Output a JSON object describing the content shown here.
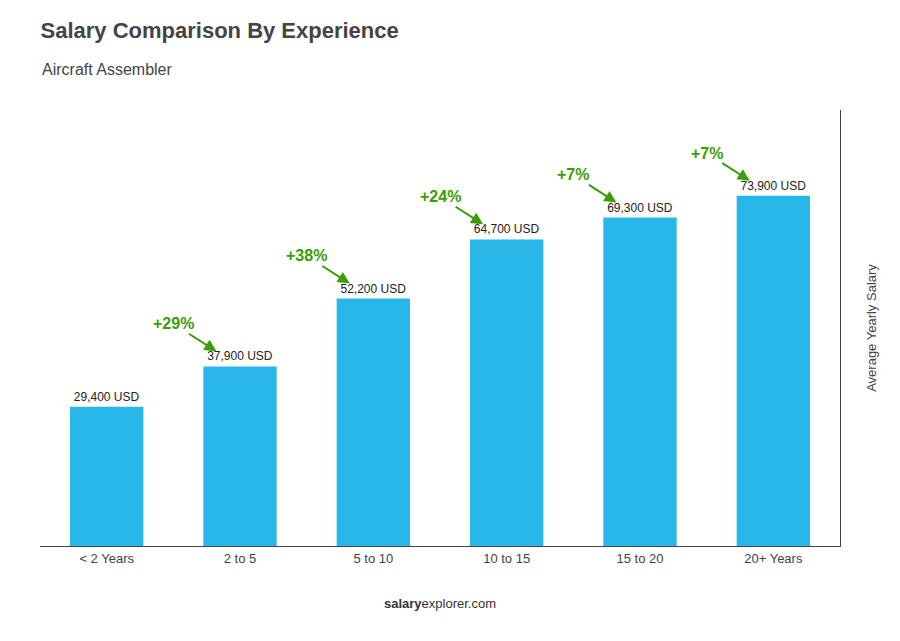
{
  "chart_data": {
    "type": "bar",
    "title": "Salary Comparison By Experience",
    "subtitle": "Aircraft Assembler",
    "categories": [
      "< 2 Years",
      "2 to 5",
      "5 to 10",
      "10 to 15",
      "15 to 20",
      "20+ Years"
    ],
    "values": [
      29400,
      37900,
      52200,
      64700,
      69300,
      73900
    ],
    "value_labels": [
      "29,400 USD",
      "37,900 USD",
      "52,200 USD",
      "64,700 USD",
      "69,300 USD",
      "73,900 USD"
    ],
    "data_labels": true,
    "color": "#29B6E8",
    "ylabel": "Average Yearly Salary",
    "ylim": [
      0,
      92000
    ],
    "grid": false,
    "tick_labels": "x",
    "annotations": [
      "+29%",
      "+38%",
      "+24%",
      "+7%",
      "+7%"
    ],
    "footer": [
      "salary",
      "explorer.com"
    ]
  }
}
